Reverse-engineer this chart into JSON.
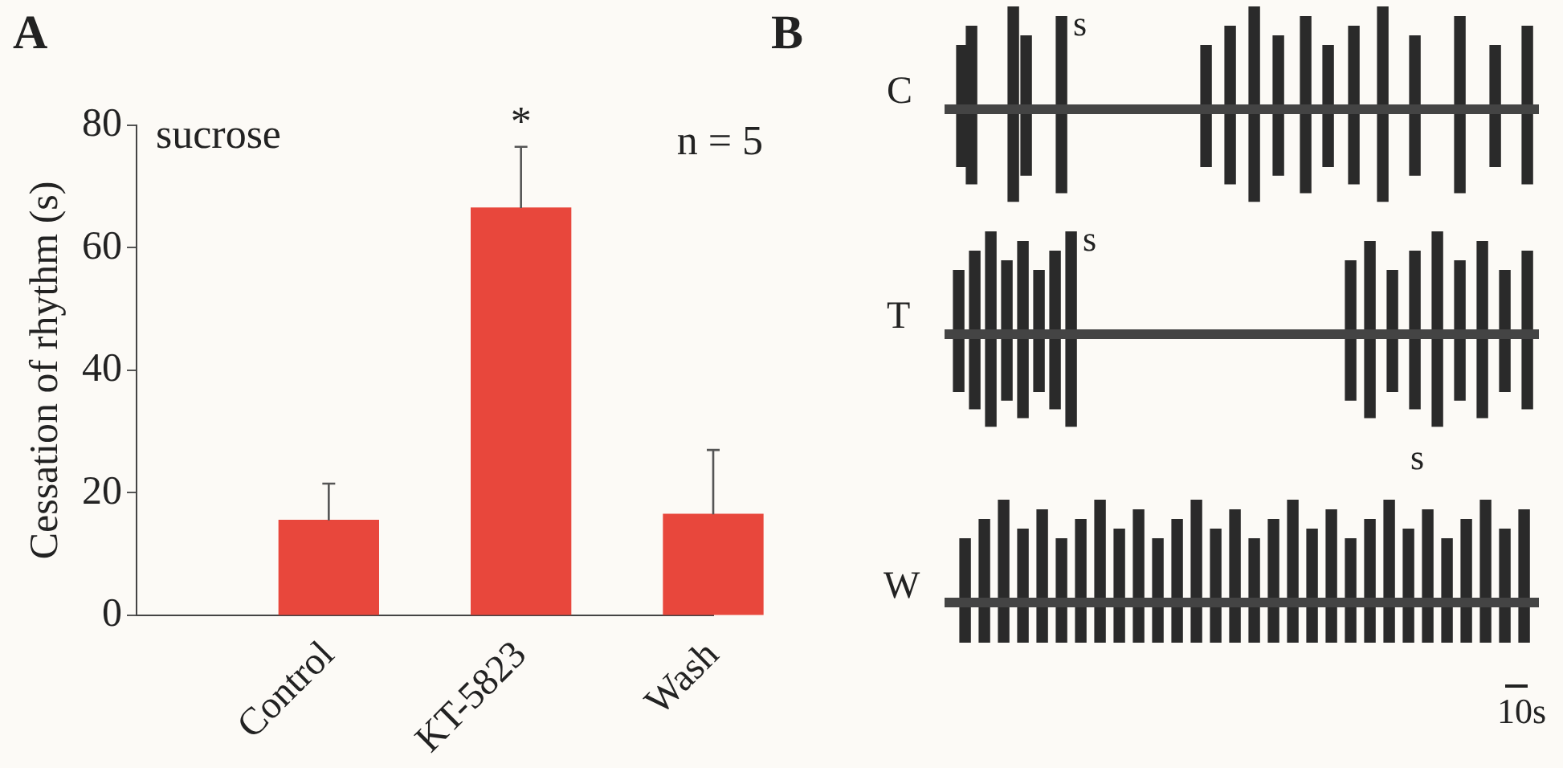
{
  "chart_data": [
    {
      "type": "bar",
      "title": "A",
      "ylabel": "Cessation of rhythm (s)",
      "categories": [
        null,
        "Control",
        "KT-5823",
        "Wash"
      ],
      "values": [
        null,
        15.5,
        66.5,
        16.5
      ],
      "errors": [
        null,
        [
          15.5,
          21.5
        ],
        [
          66.5,
          76.5
        ],
        [
          16.5,
          27
        ]
      ],
      "color": "#e8473c",
      "ylim": [
        0,
        80
      ],
      "yticks": [
        0,
        20,
        40,
        60,
        80
      ],
      "grid": false,
      "legend": false,
      "annotations": [
        "sucrose",
        "n = 5",
        "*"
      ]
    },
    {
      "type": "other",
      "title": "B",
      "annotations": [
        "C",
        "T",
        "W",
        "s",
        "s",
        "s",
        "10s"
      ]
    }
  ]
}
